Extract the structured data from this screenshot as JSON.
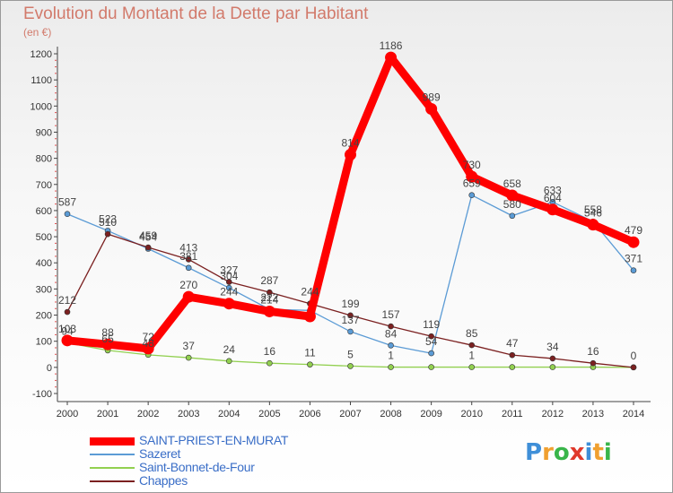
{
  "chart_data": {
    "type": "line",
    "title": "Evolution du Montant de la Dette par Habitant",
    "ylabel": "(en €)",
    "xlabel": "",
    "ylim": [
      -100,
      1200
    ],
    "yticks": [
      -100,
      0,
      100,
      200,
      300,
      400,
      500,
      600,
      700,
      800,
      900,
      1000,
      1100,
      1200
    ],
    "x": [
      "2000",
      "2001",
      "2002",
      "2003",
      "2004",
      "2005",
      "2006",
      "2007",
      "2008",
      "2009",
      "2010",
      "2011",
      "2012",
      "2013",
      "2014"
    ],
    "series": [
      {
        "name": "SAINT-PRIEST-EN-MURAT",
        "color": "#ff0000",
        "values": [
          103,
          88,
          72,
          270,
          244,
          214,
          195,
          814,
          1186,
          989,
          730,
          658,
          604,
          546,
          479
        ],
        "labels": [
          "103",
          "88",
          "72",
          "270",
          "244",
          "214",
          "",
          "814",
          "1186",
          "989",
          "730",
          "658",
          "604",
          "546",
          "479"
        ]
      },
      {
        "name": "Sazeret",
        "color": "#5b9bd5",
        "values": [
          587,
          523,
          454,
          381,
          304,
          222,
          218,
          137,
          84,
          54,
          659,
          580,
          633,
          558,
          371
        ],
        "labels": [
          "587",
          "523",
          "454",
          "381",
          "304",
          "222",
          "",
          "137",
          "84",
          "54",
          "659",
          "580",
          "633",
          "558",
          "371"
        ]
      },
      {
        "name": "Saint-Bonnet-de-Four",
        "color": "#92d050",
        "values": [
          94,
          65,
          48,
          37,
          24,
          16,
          11,
          5,
          1,
          1,
          1,
          1,
          1,
          1,
          0
        ],
        "labels": [
          "94",
          "65",
          "48",
          "37",
          "24",
          "16",
          "11",
          "5",
          "1",
          "",
          "1",
          "",
          "",
          "",
          ""
        ]
      },
      {
        "name": "Chappes",
        "color": "#7b2020",
        "values": [
          212,
          510,
          459,
          413,
          327,
          287,
          244,
          199,
          157,
          119,
          85,
          47,
          34,
          16,
          0
        ],
        "labels": [
          "212",
          "510",
          "459",
          "413",
          "327",
          "287",
          "244",
          "199",
          "157",
          "119",
          "85",
          "47",
          "34",
          "16",
          "0"
        ]
      }
    ],
    "grid": false,
    "legend": "bottom-left"
  },
  "logo": {
    "letters": [
      "P",
      "r",
      "o",
      "x",
      "i",
      "t",
      "i"
    ]
  }
}
